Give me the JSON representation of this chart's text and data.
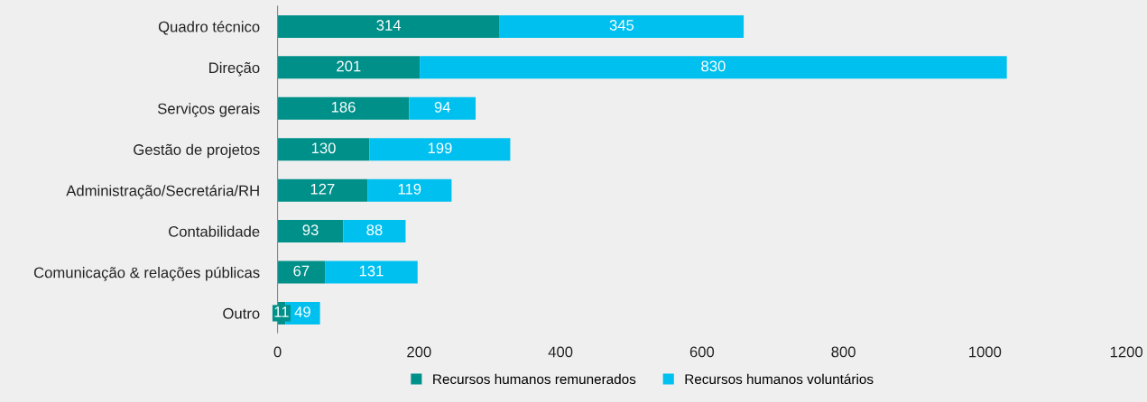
{
  "chart_data": {
    "type": "bar",
    "orientation": "horizontal",
    "stacked": true,
    "categories": [
      "Quadro técnico",
      "Direção",
      "Serviços gerais",
      "Gestão de projetos",
      "Administração/Secretária/RH",
      "Contabilidade",
      "Comunicação & relações públicas",
      "Outro"
    ],
    "series": [
      {
        "name": "Recursos humanos remunerados",
        "color": "#00908a",
        "values": [
          314,
          201,
          186,
          130,
          127,
          93,
          67,
          11
        ]
      },
      {
        "name": "Recursos humanos voluntários",
        "color": "#00c0f0",
        "values": [
          345,
          830,
          94,
          199,
          119,
          88,
          131,
          49
        ]
      }
    ],
    "xlim": [
      0,
      1200
    ],
    "xticks": [
      0,
      200,
      400,
      600,
      800,
      1000,
      1200
    ],
    "data_labels": true,
    "grid": false,
    "legend": "bottom"
  }
}
